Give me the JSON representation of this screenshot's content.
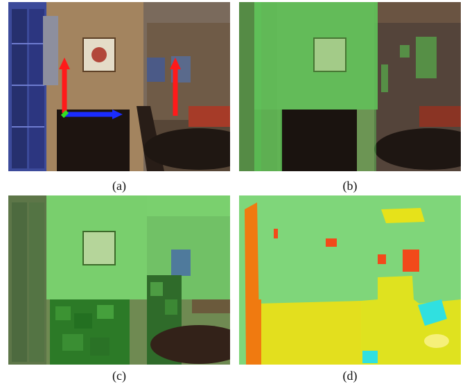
{
  "figure": {
    "panels": [
      {
        "id": "a",
        "caption": "(a)",
        "overlay": "surface-normal-axes"
      },
      {
        "id": "b",
        "caption": "(b)",
        "overlay": "green-vertical-segmentation"
      },
      {
        "id": "c",
        "caption": "(c)",
        "overlay": "green-patch-segmentation"
      },
      {
        "id": "d",
        "caption": "(d)",
        "overlay": "multi-label-segmentation"
      }
    ],
    "colors": {
      "axis_red": "#ff1a1a",
      "axis_blue": "#1a2cff",
      "axis_green": "#33dd22",
      "seg_green": "#6fd66a",
      "seg_yellow": "#e6e21a",
      "seg_orange": "#f07a10",
      "seg_cyan": "#30e0e0",
      "seg_red": "#f24a1a"
    }
  }
}
